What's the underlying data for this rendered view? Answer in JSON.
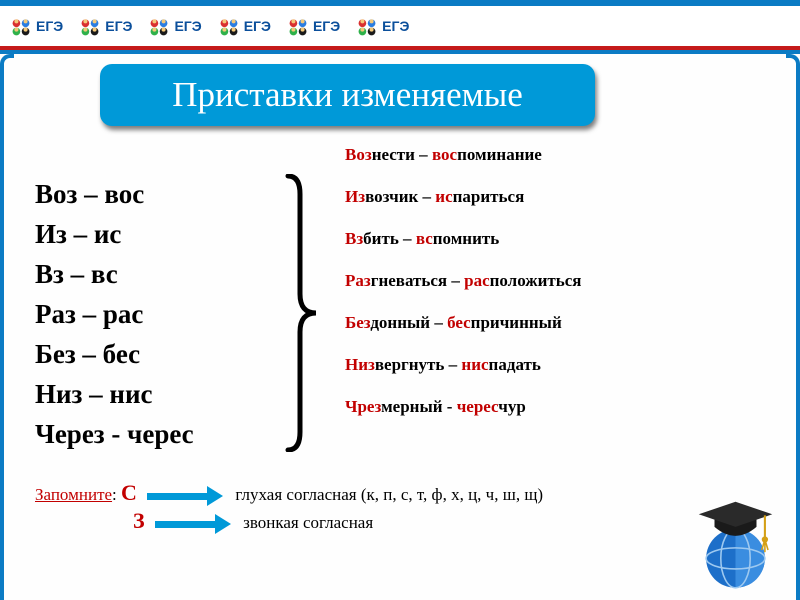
{
  "header": {
    "logo_text": "ЕГЭ",
    "repeat": 6
  },
  "title": "Приставки изменяемые",
  "prefixes": [
    "Воз – вос",
    "Из – ис",
    "Вз – вс",
    "Раз – рас",
    "Без – бес",
    "Низ – нис",
    "Через - черес"
  ],
  "examples": [
    {
      "parts": [
        {
          "t": "Во",
          "c": "red"
        },
        {
          "t": "з",
          "c": "red"
        },
        {
          "t": "нести – ",
          "c": "blk"
        },
        {
          "t": "вос",
          "c": "red"
        },
        {
          "t": "поминание",
          "c": "blk"
        }
      ]
    },
    {
      "parts": [
        {
          "t": "Из",
          "c": "red"
        },
        {
          "t": "возчик – ",
          "c": "blk"
        },
        {
          "t": "ис",
          "c": "red"
        },
        {
          "t": "париться",
          "c": "blk"
        }
      ]
    },
    {
      "parts": [
        {
          "t": "Вз",
          "c": "red"
        },
        {
          "t": "бить – ",
          "c": "blk"
        },
        {
          "t": "вс",
          "c": "red"
        },
        {
          "t": "помнить",
          "c": "blk"
        }
      ]
    },
    {
      "parts": [
        {
          "t": "Раз",
          "c": "red"
        },
        {
          "t": "гневаться – ",
          "c": "blk"
        },
        {
          "t": "рас",
          "c": "red"
        },
        {
          "t": "положиться",
          "c": "blk"
        }
      ]
    },
    {
      "parts": [
        {
          "t": "Без",
          "c": "red"
        },
        {
          "t": "донный – ",
          "c": "blk"
        },
        {
          "t": "бес",
          "c": "red"
        },
        {
          "t": "причинный",
          "c": "blk"
        }
      ]
    },
    {
      "parts": [
        {
          "t": "Низ",
          "c": "red"
        },
        {
          "t": "вергнуть – ",
          "c": "blk"
        },
        {
          "t": "нис",
          "c": "red"
        },
        {
          "t": "падать",
          "c": "blk"
        }
      ]
    },
    {
      "parts": [
        {
          "t": "Чрез",
          "c": "red"
        },
        {
          "t": "мерный - ",
          "c": "blk"
        },
        {
          "t": "черес",
          "c": "red"
        },
        {
          "t": "чур",
          "c": "blk"
        }
      ]
    }
  ],
  "footer": {
    "remember": "Запомните",
    "colon": ": ",
    "c": "С",
    "z": "З",
    "rule_c": "глухая согласная  (к, п, с, т, ф, х, ц, ч, ш, щ)",
    "rule_z": "звонкая согласная"
  },
  "colors": {
    "accent": "#0099d8",
    "red": "#c20000",
    "blue_frame": "#0b7bc4",
    "red_frame": "#c51a1a"
  }
}
